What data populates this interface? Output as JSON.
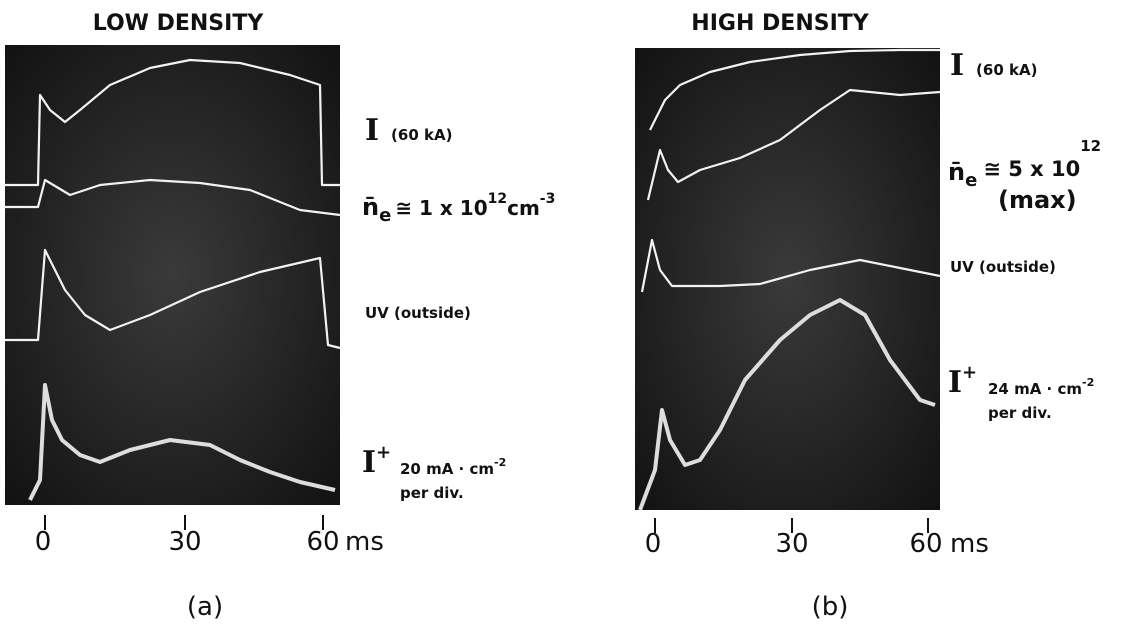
{
  "panels": [
    {
      "title": "LOW DENSITY",
      "current": {
        "symbol": "I",
        "label": "(60 kA)"
      },
      "density": {
        "symbol": "n̄",
        "sub": "e",
        "relation": "≅ 1 x 10",
        "exp": "12",
        "unit": "cm",
        "unit_exp": "-3"
      },
      "uv": "UV (outside)",
      "ion": {
        "symbol": "I",
        "sup": "+",
        "scale": "20 mA · cm",
        "scale_exp": "-2",
        "per": "per div."
      },
      "ticks": [
        "0",
        "30",
        "60"
      ],
      "unit": "ms",
      "caption": "(a)"
    },
    {
      "title": "HIGH DENSITY",
      "current": {
        "symbol": "I",
        "label": "(60 kA)"
      },
      "density": {
        "symbol": "n̄",
        "sub": "e",
        "relation": "≅ 5 x 10",
        "exp": "12",
        "note": "(max)"
      },
      "uv": "UV (outside)",
      "ion": {
        "symbol": "I",
        "sup": "+",
        "scale": "24 mA · cm",
        "scale_exp": "-2",
        "per": "per div."
      },
      "ticks": [
        "0",
        "30",
        "60"
      ],
      "unit": "ms",
      "caption": "(b)"
    }
  ]
}
